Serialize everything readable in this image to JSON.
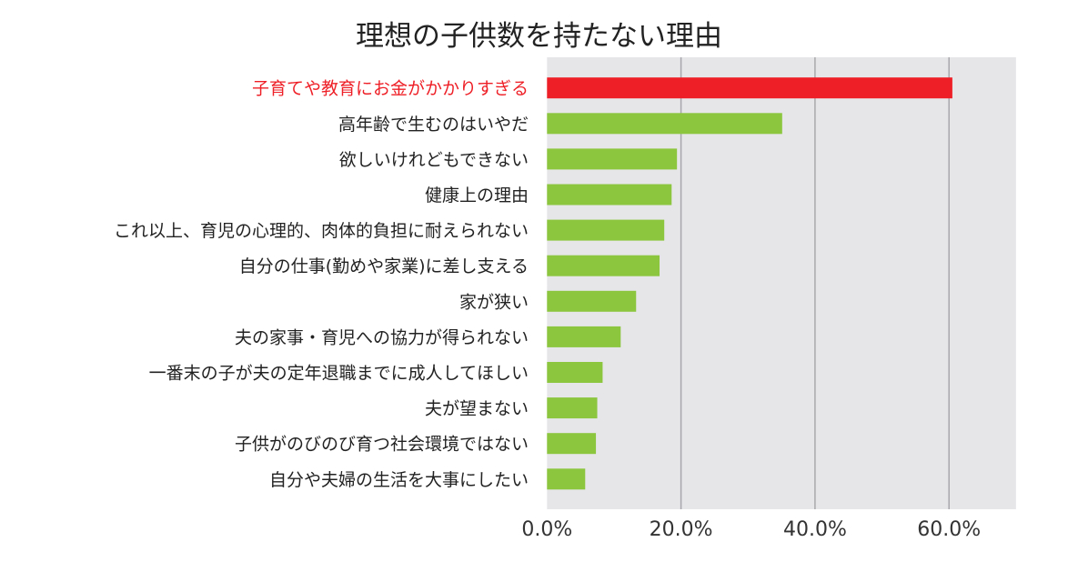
{
  "chart_data": {
    "type": "bar",
    "orientation": "horizontal",
    "title": "理想の子供数を持たない理由",
    "categories": [
      "子育てや教育にお金がかかりすぎる",
      "高年齢で生むのはいやだ",
      "欲しいけれどもできない",
      "健康上の理由",
      "これ以上、育児の心理的、肉体的負担に耐えられない",
      "自分の仕事(勤めや家業)に差し支える",
      "家が狭い",
      "夫の家事・育児への協力が得られない",
      "一番末の子が夫の定年退職までに成人してほしい",
      "夫が望まない",
      "子供がのびのび育つ社会環境ではない",
      "自分や夫婦の生活を大事にしたい"
    ],
    "values": [
      60.5,
      35.1,
      19.4,
      18.6,
      17.5,
      16.8,
      13.3,
      11.0,
      8.3,
      7.5,
      7.3,
      5.7
    ],
    "xlim": [
      0,
      70
    ],
    "xticks": [
      0,
      20,
      40,
      60
    ],
    "xtick_labels": [
      "0.0%",
      "20.0%",
      "40.0%",
      "60.0%"
    ],
    "grid": true,
    "colors": {
      "highlight": "#ee1f26",
      "bar": "#8cc63f",
      "plot_bg": "#e6e6e9",
      "grid": "#a8a8ac",
      "highlight_label": "#ee1f26"
    }
  }
}
